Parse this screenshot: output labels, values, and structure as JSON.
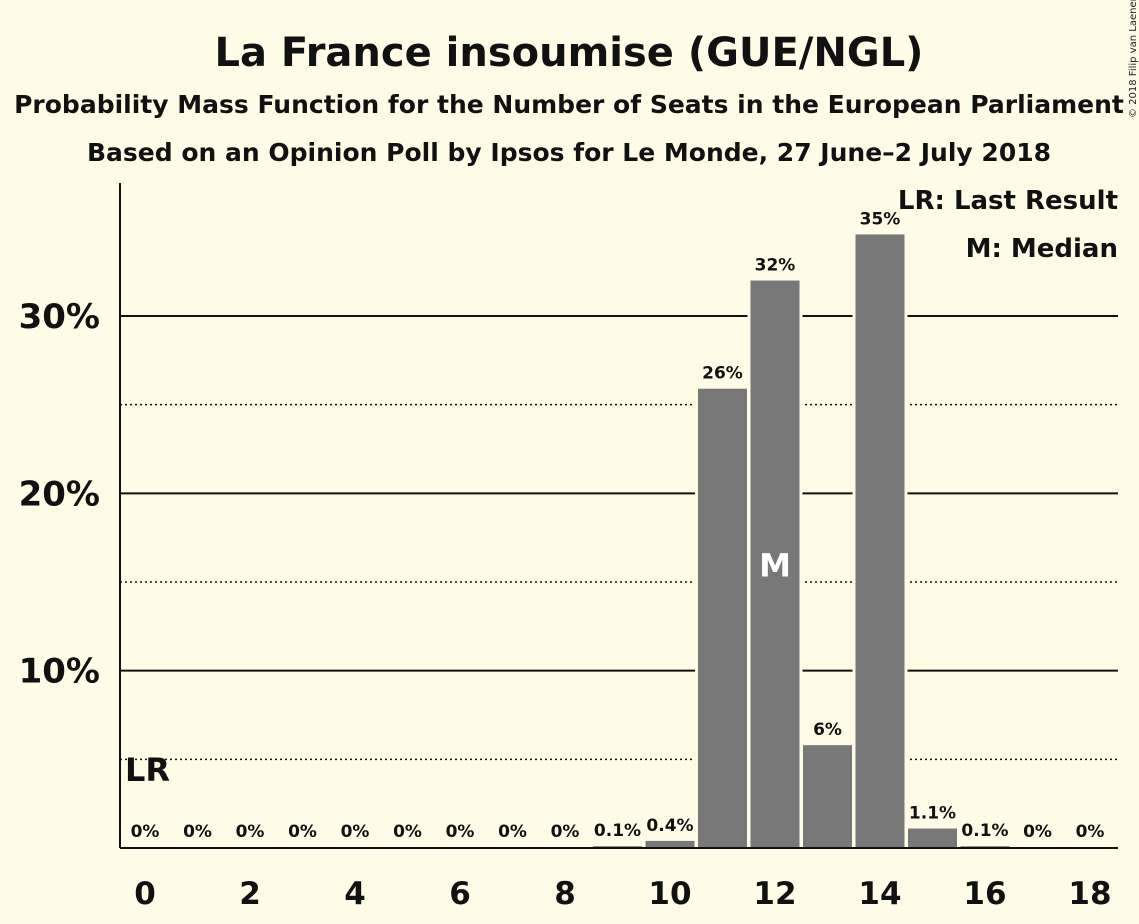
{
  "chart_data": {
    "type": "bar",
    "title": "La France insoumise (GUE/NGL)",
    "subtitle": "Probability Mass Function for the Number of Seats in the European Parliament",
    "subtitle2": "Based on an Opinion Poll by Ipsos for Le Monde, 27 June–2 July 2018",
    "categories": [
      0,
      1,
      2,
      3,
      4,
      5,
      6,
      7,
      8,
      9,
      10,
      11,
      12,
      13,
      14,
      15,
      16,
      17,
      18
    ],
    "values": [
      0,
      0,
      0,
      0,
      0,
      0,
      0,
      0,
      0,
      0.1,
      0.4,
      25.9,
      32.0,
      5.8,
      34.6,
      1.1,
      0.1,
      0,
      0
    ],
    "data_labels": [
      "0%",
      "0%",
      "0%",
      "0%",
      "0%",
      "0%",
      "0%",
      "0%",
      "0%",
      "0.1%",
      "0.4%",
      "26%",
      "32%",
      "6%",
      "35%",
      "1.1%",
      "0.1%",
      "0%",
      "0%"
    ],
    "x_tick_labels": [
      "0",
      "2",
      "4",
      "6",
      "8",
      "10",
      "12",
      "14",
      "16",
      "18"
    ],
    "x_tick_values": [
      0,
      2,
      4,
      6,
      8,
      10,
      12,
      14,
      16,
      18
    ],
    "y_tick_labels": [
      "10%",
      "20%",
      "30%"
    ],
    "y_tick_values": [
      10,
      20,
      30
    ],
    "y_minor_gridlines": [
      5,
      15,
      25
    ],
    "ylim": [
      0,
      37.5
    ],
    "xlabel": "",
    "ylabel": "",
    "grid": true,
    "last_result_seat": 0,
    "last_result_marker": "LR",
    "median_seat": 12,
    "median_marker": "M",
    "legend": [
      "LR: Last Result",
      "M: Median"
    ],
    "legend_position": "top-right",
    "bar_color": "#787878",
    "background_color": "#fefce6",
    "copyright": "© 2018 Filip van Laenen"
  }
}
